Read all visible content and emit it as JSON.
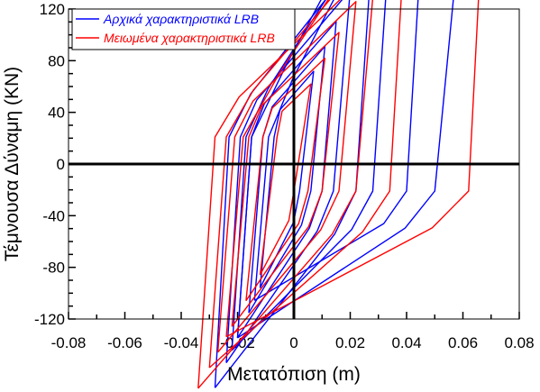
{
  "chart_data": {
    "type": "line",
    "title": "",
    "xlabel": "Μετατόπιση (m)",
    "ylabel": "Τέμνουσα Δύναμη (KN)",
    "xlim": [
      -0.08,
      0.08
    ],
    "ylim": [
      -120,
      120
    ],
    "x_ticks": [
      -0.08,
      -0.06,
      -0.04,
      -0.02,
      0,
      0.02,
      0.04,
      0.06,
      0.08
    ],
    "x_tick_labels": [
      "-0.08",
      "-0.06",
      "-0.04",
      "-0.02",
      "0",
      "0.02",
      "0.04",
      "0.06",
      "0.08"
    ],
    "y_ticks": [
      -120,
      -80,
      -40,
      0,
      40,
      80,
      120
    ],
    "y_tick_labels": [
      "-120",
      "-80",
      "-40",
      "0",
      "40",
      "80",
      "120"
    ],
    "grid": false,
    "legend_position": "top-left",
    "series": [
      {
        "name": "Αρχικά χαρακτηριστικά LRB",
        "color": "#0000ff",
        "loops": [
          [
            -0.012,
            -0.007,
            0.007,
            0.002
          ],
          [
            -0.016,
            -0.011,
            0.011,
            0.006
          ],
          [
            -0.02,
            -0.015,
            0.015,
            0.01
          ],
          [
            -0.024,
            -0.019,
            0.02,
            0.014
          ],
          [
            -0.028,
            -0.023,
            0.028,
            0.022
          ],
          [
            -0.022,
            -0.017,
            0.035,
            0.028
          ],
          [
            -0.014,
            -0.009,
            0.048,
            0.04
          ],
          [
            -0.02,
            -0.015,
            0.067,
            0.05
          ]
        ]
      },
      {
        "name": "Μειωμένα χαρακτηριστικά LRB",
        "color": "#ff0000",
        "loops": [
          [
            -0.012,
            -0.006,
            0.006,
            0.0
          ],
          [
            -0.017,
            -0.011,
            0.011,
            0.005
          ],
          [
            -0.022,
            -0.016,
            0.016,
            0.01
          ],
          [
            -0.027,
            -0.021,
            0.022,
            0.016
          ],
          [
            -0.034,
            -0.028,
            0.029,
            0.022
          ],
          [
            -0.03,
            -0.024,
            0.04,
            0.034
          ],
          [
            -0.024,
            -0.018,
            0.07,
            0.062
          ]
        ]
      }
    ]
  }
}
